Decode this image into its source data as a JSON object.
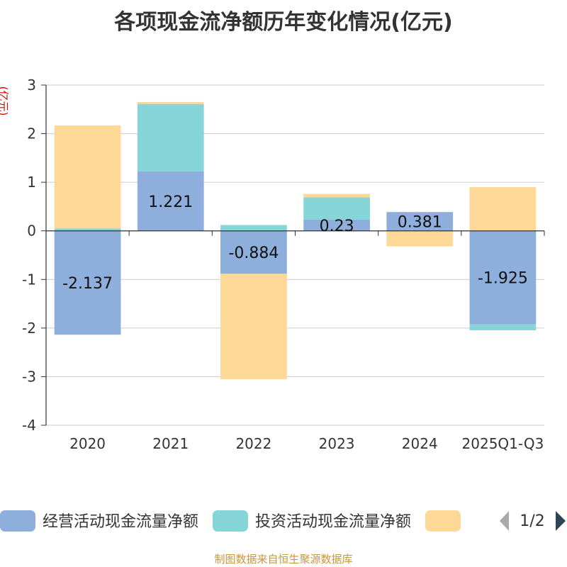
{
  "title": "各项现金流净额历年变化情况(亿元)",
  "unit_label": "(亿元)",
  "source": "制图数据来自恒生聚源数据库",
  "legend": {
    "page_indicator": "1/2",
    "prev_icon": "triangle-left-icon",
    "next_icon": "triangle-right-icon",
    "prev_color": "#aaaaaa",
    "next_color": "#2f4554"
  },
  "chart_data": {
    "type": "bar",
    "stacked": true,
    "categories": [
      "2020",
      "2021",
      "2022",
      "2023",
      "2024",
      "2025Q1-Q3"
    ],
    "ylim": [
      -4,
      3
    ],
    "yticks": [
      3,
      2,
      1,
      0,
      -1,
      -2,
      -3,
      -4
    ],
    "grid": true,
    "legend_position": "bottom",
    "series": [
      {
        "name": "经营活动现金流量净额",
        "color": "#8eaedb",
        "values": [
          -2.137,
          1.221,
          -0.884,
          0.23,
          0.381,
          -1.925
        ],
        "labels": [
          "-2.137",
          "1.221",
          "-0.884",
          "0.23",
          "0.381",
          "-1.925"
        ]
      },
      {
        "name": "投资活动现金流量净额",
        "color": "#86d5d9",
        "values": [
          0.05,
          1.39,
          0.12,
          0.46,
          0.01,
          -0.12
        ]
      },
      {
        "name": "",
        "color": "#fed897",
        "values": [
          2.12,
          0.04,
          -2.17,
          0.07,
          -0.32,
          0.9
        ]
      }
    ]
  }
}
